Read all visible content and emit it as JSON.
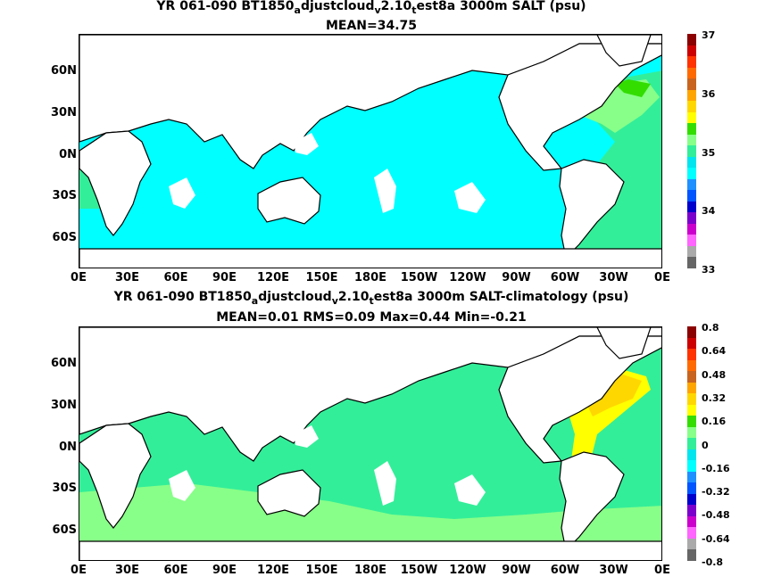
{
  "panel1": {
    "title_a": "YR 061-090 BT1850",
    "title_sub1": "a",
    "title_b": "djustcloud",
    "title_sub2": "v",
    "title_c": "2.10",
    "title_sub3": "t",
    "title_d": "est8a 3000m SALT (psu)",
    "stat": "MEAN=34.75",
    "y_ticks": [
      "60N",
      "30N",
      "0N",
      "30S",
      "60S"
    ],
    "x_ticks": [
      "0E",
      "30E",
      "60E",
      "90E",
      "120E",
      "150E",
      "180E",
      "150W",
      "120W",
      "90W",
      "60W",
      "30W",
      "0E"
    ],
    "cbar_labels": [
      "37",
      "36",
      "35",
      "34",
      "33"
    ],
    "cbar_colors": [
      "#8b0000",
      "#cc0000",
      "#ff3300",
      "#ff6a00",
      "#c8641e",
      "#ffa500",
      "#ffd700",
      "#ffff00",
      "#33dd00",
      "#88ff88",
      "#33ee99",
      "#00e5ee",
      "#00ffff",
      "#1e90ff",
      "#0055ff",
      "#0000cc",
      "#7b00cc",
      "#cc00cc",
      "#ff66ff",
      "#aaaaaa",
      "#666666"
    ]
  },
  "panel2": {
    "title_a": "YR 061-090 BT1850",
    "title_sub1": "a",
    "title_b": "djustcloud",
    "title_sub2": "v",
    "title_c": "2.10",
    "title_sub3": "t",
    "title_d": "est8a 3000m SALT-climatology (psu)",
    "stat": "MEAN=0.01   RMS=0.09   Max=0.44   Min=-0.21",
    "y_ticks": [
      "60N",
      "30N",
      "0N",
      "30S",
      "60S"
    ],
    "x_ticks": [
      "0E",
      "30E",
      "60E",
      "90E",
      "120E",
      "150E",
      "180E",
      "150W",
      "120W",
      "90W",
      "60W",
      "30W",
      "0E"
    ],
    "cbar_labels": [
      "0.8",
      "0.64",
      "0.48",
      "0.32",
      "0.16",
      "0",
      "-0.16",
      "-0.32",
      "-0.48",
      "-0.64",
      "-0.8"
    ],
    "cbar_colors": [
      "#8b0000",
      "#cc0000",
      "#ff3300",
      "#ff6a00",
      "#c8641e",
      "#ffa500",
      "#ffd700",
      "#ffff00",
      "#33dd00",
      "#88ff88",
      "#33ee99",
      "#00e5ee",
      "#00ffff",
      "#1e90ff",
      "#0055ff",
      "#0000cc",
      "#7b00cc",
      "#cc00cc",
      "#ff66ff",
      "#aaaaaa",
      "#666666"
    ]
  },
  "map_colors": {
    "land": "#ffffff",
    "coast": "#000000",
    "pacific_top": "#00ffff",
    "atlantic_top": "#33ee99",
    "atlantic_north_top": "#88ff88",
    "atlantic_high_top": "#33dd00",
    "ocean_bottom": "#33ee99",
    "southern_bottom": "#88ff88",
    "atlantic_bottom": "#ffff00",
    "atlantic_hi_bottom": "#ffd700",
    "arctic_bottom": "#ffa500",
    "arctic_hi_bottom": "#c8641e"
  }
}
